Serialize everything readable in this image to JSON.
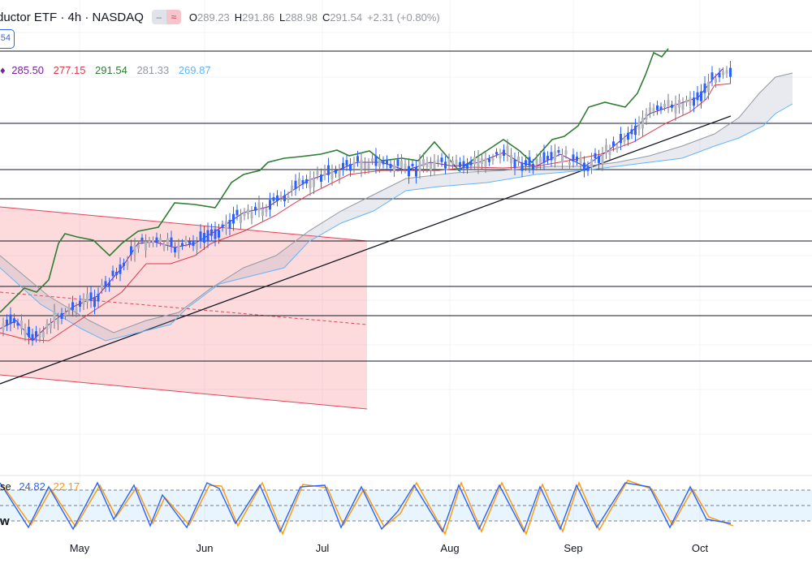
{
  "header": {
    "title": "ductor ETF · 4h · NASDAQ",
    "toggle_left": "–",
    "toggle_right": "≈",
    "open_label": "O",
    "open": "289.23",
    "high_label": "H",
    "high": "291.86",
    "low_label": "L",
    "low": "288.98",
    "close_label": "C",
    "close": "291.54",
    "change": "+2.31 (+0.80%)"
  },
  "price_tag": "54",
  "ichimoku": {
    "marker": "♦",
    "values": [
      "285.50",
      "277.15",
      "291.54",
      "281.33",
      "269.87"
    ],
    "colors": [
      "#7b1fa2",
      "#e03a4a",
      "#2e7d32",
      "#9598a1",
      "#64b5f6"
    ]
  },
  "stoch": {
    "label": "se",
    "k": "24.82",
    "d": "22.17",
    "k_color": "#2962ff",
    "d_color": "#ff9800"
  },
  "w_label": "w",
  "x_axis": {
    "months": [
      "May",
      "Jun",
      "Jul",
      "Aug",
      "Sep",
      "Oct"
    ]
  }
}
